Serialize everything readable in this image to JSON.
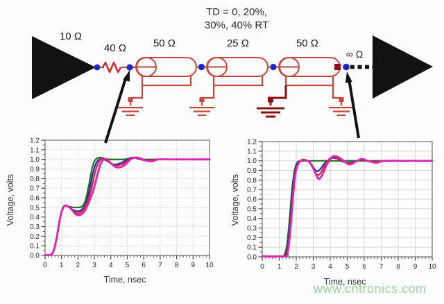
{
  "circuit": {
    "td_note_line1": "TD = 0, 20%,",
    "td_note_line2": "30%, 40% RT",
    "driver_impedance": "10 Ω",
    "series_resistor": "40 Ω",
    "tline1": "50 Ω",
    "tline2": "25 Ω",
    "tline3": "50 Ω",
    "load_impedance": "∞ Ω",
    "wire_color": "#c8463c",
    "resistor_color": "#d92222",
    "node_color": "#2323c8",
    "dark_ground_color": "#8b1010"
  },
  "watermark": {
    "text": "www.cntronics.com",
    "color": "#8ece98"
  },
  "chart_data": [
    {
      "type": "line",
      "position": "left",
      "xlabel": "Time, nsec",
      "ylabel": "Voltage, volts",
      "xlim": [
        0,
        10
      ],
      "ylim": [
        0,
        1.2
      ],
      "xtick_step": 1,
      "ytick_step": 0.1,
      "x_minor_step": 0.2,
      "y_minor_step": 0.05,
      "grid": true,
      "grid_style": "dotted",
      "legend": "none",
      "series": [
        {
          "name": "TD = 0",
          "color": "#1a6e1a",
          "width": 2.2,
          "points": [
            [
              0,
              0
            ],
            [
              0.3,
              0
            ],
            [
              0.5,
              0.04
            ],
            [
              0.7,
              0.18
            ],
            [
              0.9,
              0.38
            ],
            [
              1.05,
              0.48
            ],
            [
              1.2,
              0.52
            ],
            [
              1.4,
              0.51
            ],
            [
              1.7,
              0.5
            ],
            [
              2.0,
              0.5
            ],
            [
              2.25,
              0.51
            ],
            [
              2.45,
              0.57
            ],
            [
              2.65,
              0.72
            ],
            [
              2.85,
              0.9
            ],
            [
              3.0,
              0.98
            ],
            [
              3.15,
              1.01
            ],
            [
              3.35,
              1.02
            ],
            [
              3.6,
              1.01
            ],
            [
              3.9,
              1.0
            ],
            [
              4.3,
              1.0
            ],
            [
              4.8,
              1.0
            ],
            [
              5.2,
              1.01
            ],
            [
              5.5,
              1.02
            ],
            [
              5.8,
              1.0
            ],
            [
              6.3,
              1.0
            ],
            [
              7,
              1.0
            ],
            [
              8,
              1.0
            ],
            [
              9,
              1.0
            ],
            [
              10,
              1.0
            ]
          ]
        },
        {
          "name": "TD = 20% RT",
          "color": "#2525bb",
          "width": 2.2,
          "points": [
            [
              0,
              0
            ],
            [
              0.3,
              0
            ],
            [
              0.5,
              0.04
            ],
            [
              0.7,
              0.18
            ],
            [
              0.9,
              0.38
            ],
            [
              1.05,
              0.48
            ],
            [
              1.2,
              0.52
            ],
            [
              1.45,
              0.5
            ],
            [
              1.75,
              0.47
            ],
            [
              2.0,
              0.46
            ],
            [
              2.25,
              0.48
            ],
            [
              2.5,
              0.55
            ],
            [
              2.7,
              0.68
            ],
            [
              2.9,
              0.85
            ],
            [
              3.1,
              0.96
            ],
            [
              3.3,
              1.0
            ],
            [
              3.55,
              1.0
            ],
            [
              3.8,
              0.98
            ],
            [
              4.1,
              0.95
            ],
            [
              4.4,
              0.95
            ],
            [
              4.7,
              0.97
            ],
            [
              5.0,
              1.0
            ],
            [
              5.3,
              1.02
            ],
            [
              5.6,
              1.01
            ],
            [
              5.9,
              1.0
            ],
            [
              6.3,
              0.99
            ],
            [
              6.7,
              1.0
            ],
            [
              7.5,
              1.0
            ],
            [
              8.5,
              1.0
            ],
            [
              10,
              1.0
            ]
          ]
        },
        {
          "name": "TD = 30% RT",
          "color": "#d42832",
          "width": 2.3,
          "points": [
            [
              0,
              0
            ],
            [
              0.3,
              0
            ],
            [
              0.5,
              0.04
            ],
            [
              0.7,
              0.18
            ],
            [
              0.9,
              0.38
            ],
            [
              1.05,
              0.48
            ],
            [
              1.2,
              0.52
            ],
            [
              1.5,
              0.5
            ],
            [
              1.8,
              0.45
            ],
            [
              2.05,
              0.44
            ],
            [
              2.3,
              0.47
            ],
            [
              2.55,
              0.55
            ],
            [
              2.8,
              0.68
            ],
            [
              3.0,
              0.84
            ],
            [
              3.2,
              0.95
            ],
            [
              3.4,
              1.0
            ],
            [
              3.65,
              1.0
            ],
            [
              3.9,
              0.97
            ],
            [
              4.2,
              0.94
            ],
            [
              4.5,
              0.94
            ],
            [
              4.8,
              0.96
            ],
            [
              5.1,
              1.0
            ],
            [
              5.4,
              1.02
            ],
            [
              5.7,
              1.01
            ],
            [
              6.0,
              0.99
            ],
            [
              6.4,
              0.99
            ],
            [
              6.8,
              1.0
            ],
            [
              7.6,
              1.0
            ],
            [
              8.6,
              1.0
            ],
            [
              10,
              1.0
            ]
          ]
        },
        {
          "name": "TD = 40% RT",
          "color": "#dd22b8",
          "width": 2.8,
          "points": [
            [
              0,
              0
            ],
            [
              0.3,
              0
            ],
            [
              0.5,
              0.04
            ],
            [
              0.7,
              0.18
            ],
            [
              0.9,
              0.38
            ],
            [
              1.05,
              0.48
            ],
            [
              1.25,
              0.52
            ],
            [
              1.55,
              0.49
            ],
            [
              1.85,
              0.43
            ],
            [
              2.1,
              0.42
            ],
            [
              2.35,
              0.45
            ],
            [
              2.6,
              0.53
            ],
            [
              2.9,
              0.66
            ],
            [
              3.15,
              0.82
            ],
            [
              3.35,
              0.94
            ],
            [
              3.55,
              1.0
            ],
            [
              3.75,
              1.0
            ],
            [
              4.0,
              0.96
            ],
            [
              4.3,
              0.92
            ],
            [
              4.6,
              0.92
            ],
            [
              4.9,
              0.95
            ],
            [
              5.2,
              1.0
            ],
            [
              5.5,
              1.02
            ],
            [
              5.8,
              1.01
            ],
            [
              6.1,
              0.99
            ],
            [
              6.5,
              0.98
            ],
            [
              6.9,
              1.0
            ],
            [
              7.7,
              1.0
            ],
            [
              8.7,
              1.0
            ],
            [
              10,
              1.0
            ]
          ]
        }
      ]
    },
    {
      "type": "line",
      "position": "right",
      "xlabel": "Time, nsec",
      "ylabel": "Voltage, volts",
      "xlim": [
        0,
        10
      ],
      "ylim": [
        0,
        1.2
      ],
      "xtick_step": 1,
      "ytick_step": 0.1,
      "x_minor_step": 0.2,
      "y_minor_step": 0.05,
      "grid": true,
      "grid_style": "solid",
      "legend": "none",
      "series": [
        {
          "name": "TD = 0",
          "color": "#1a6e1a",
          "width": 2.2,
          "points": [
            [
              0,
              0
            ],
            [
              1.15,
              0
            ],
            [
              1.3,
              0.02
            ],
            [
              1.45,
              0.12
            ],
            [
              1.6,
              0.38
            ],
            [
              1.75,
              0.7
            ],
            [
              1.9,
              0.9
            ],
            [
              2.05,
              0.98
            ],
            [
              2.25,
              1.0
            ],
            [
              2.6,
              1.0
            ],
            [
              3.2,
              1.0
            ],
            [
              4,
              1.0
            ],
            [
              5,
              1.0
            ],
            [
              6,
              1.0
            ],
            [
              7,
              1.0
            ],
            [
              8,
              1.0
            ],
            [
              9,
              1.0
            ],
            [
              10,
              1.0
            ]
          ]
        },
        {
          "name": "TD = 20% RT",
          "color": "#2525bb",
          "width": 2.2,
          "points": [
            [
              0,
              0
            ],
            [
              1.25,
              0
            ],
            [
              1.4,
              0.03
            ],
            [
              1.55,
              0.18
            ],
            [
              1.7,
              0.5
            ],
            [
              1.85,
              0.8
            ],
            [
              2.0,
              0.94
            ],
            [
              2.15,
              0.99
            ],
            [
              2.35,
              1.0
            ],
            [
              2.65,
              1.0
            ],
            [
              2.9,
              0.96
            ],
            [
              3.1,
              0.91
            ],
            [
              3.25,
              0.89
            ],
            [
              3.45,
              0.92
            ],
            [
              3.65,
              0.97
            ],
            [
              3.9,
              1.01
            ],
            [
              4.15,
              1.03
            ],
            [
              4.45,
              1.02
            ],
            [
              4.75,
              0.99
            ],
            [
              5.05,
              0.98
            ],
            [
              5.4,
              0.99
            ],
            [
              5.75,
              1.01
            ],
            [
              6.1,
              1.0
            ],
            [
              6.6,
              0.99
            ],
            [
              7.1,
              1.0
            ],
            [
              8,
              1.0
            ],
            [
              9,
              1.0
            ],
            [
              10,
              1.0
            ]
          ]
        },
        {
          "name": "TD = 30% RT",
          "color": "#d42832",
          "width": 2.3,
          "points": [
            [
              0,
              0
            ],
            [
              1.3,
              0
            ],
            [
              1.45,
              0.04
            ],
            [
              1.6,
              0.22
            ],
            [
              1.75,
              0.55
            ],
            [
              1.9,
              0.83
            ],
            [
              2.05,
              0.95
            ],
            [
              2.2,
              0.99
            ],
            [
              2.4,
              1.0
            ],
            [
              2.7,
              1.0
            ],
            [
              2.95,
              0.94
            ],
            [
              3.15,
              0.87
            ],
            [
              3.3,
              0.85
            ],
            [
              3.5,
              0.89
            ],
            [
              3.7,
              0.96
            ],
            [
              3.95,
              1.02
            ],
            [
              4.2,
              1.04
            ],
            [
              4.5,
              1.02
            ],
            [
              4.8,
              0.99
            ],
            [
              5.1,
              0.97
            ],
            [
              5.45,
              0.99
            ],
            [
              5.8,
              1.01
            ],
            [
              6.15,
              1.0
            ],
            [
              6.65,
              0.99
            ],
            [
              7.15,
              1.0
            ],
            [
              8,
              1.0
            ],
            [
              9,
              1.0
            ],
            [
              10,
              1.0
            ]
          ]
        },
        {
          "name": "TD = 40% RT",
          "color": "#dd22b8",
          "width": 2.8,
          "points": [
            [
              0,
              0
            ],
            [
              1.35,
              0
            ],
            [
              1.5,
              0.05
            ],
            [
              1.65,
              0.27
            ],
            [
              1.8,
              0.6
            ],
            [
              1.95,
              0.86
            ],
            [
              2.1,
              0.96
            ],
            [
              2.25,
              1.0
            ],
            [
              2.45,
              1.01
            ],
            [
              2.75,
              0.99
            ],
            [
              3.0,
              0.92
            ],
            [
              3.2,
              0.84
            ],
            [
              3.35,
              0.81
            ],
            [
              3.55,
              0.86
            ],
            [
              3.75,
              0.94
            ],
            [
              4.0,
              1.02
            ],
            [
              4.25,
              1.05
            ],
            [
              4.55,
              1.03
            ],
            [
              4.85,
              0.99
            ],
            [
              5.15,
              0.96
            ],
            [
              5.5,
              0.99
            ],
            [
              5.85,
              1.02
            ],
            [
              6.2,
              1.0
            ],
            [
              6.7,
              0.98
            ],
            [
              7.2,
              1.0
            ],
            [
              8.1,
              1.0
            ],
            [
              9,
              1.0
            ],
            [
              10,
              1.0
            ]
          ]
        }
      ]
    }
  ]
}
